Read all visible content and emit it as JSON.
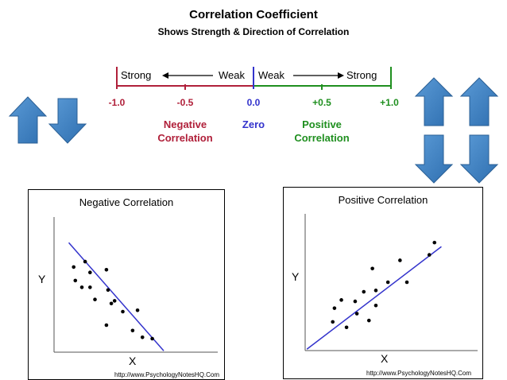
{
  "header": {
    "title": "Correlation Coefficient",
    "subtitle": "Shows Strength & Direction of Correlation"
  },
  "scale": {
    "left_strong": "Strong",
    "left_weak": "Weak",
    "right_weak": "Weak",
    "right_strong": "Strong",
    "ticks": [
      {
        "label": "-1.0",
        "value": -1.0
      },
      {
        "label": "-0.5",
        "value": -0.5
      },
      {
        "label": "0.0",
        "value": 0.0
      },
      {
        "label": "+0.5",
        "value": 0.5
      },
      {
        "label": "+1.0",
        "value": 1.0
      }
    ],
    "negative_line1": "Negative",
    "negative_line2": "Correlation",
    "zero": "Zero",
    "positive_line1": "Positive",
    "positive_line2": "Correlation"
  },
  "colors": {
    "negative": "#b0203a",
    "zero": "#3333cc",
    "positive": "#1f8f1f",
    "arrow_fill": "#3d7fc0",
    "arrow_stroke": "#2a5f95",
    "fit_line": "#3333cc"
  },
  "panels": {
    "negative": {
      "title": "Negative Correlation",
      "xlabel": "X",
      "ylabel": "Y",
      "credit": "http://www.PsychologyNotesHQ.Com"
    },
    "positive": {
      "title": "Positive Correlation",
      "xlabel": "X",
      "ylabel": "Y",
      "credit": "http://www.PsychologyNotesHQ.Com"
    }
  },
  "chart_data": [
    {
      "type": "scatter",
      "title": "Negative Correlation",
      "xlabel": "X",
      "ylabel": "Y",
      "xlim": [
        0,
        10
      ],
      "ylim": [
        0,
        10
      ],
      "points": [
        [
          1.2,
          6.3
        ],
        [
          1.3,
          5.3
        ],
        [
          1.7,
          4.8
        ],
        [
          1.9,
          6.7
        ],
        [
          2.2,
          5.9
        ],
        [
          2.2,
          4.8
        ],
        [
          2.5,
          3.9
        ],
        [
          3.2,
          6.1
        ],
        [
          3.3,
          4.6
        ],
        [
          3.5,
          3.6
        ],
        [
          3.2,
          2.0
        ],
        [
          3.7,
          3.8
        ],
        [
          4.2,
          3.0
        ],
        [
          4.8,
          1.6
        ],
        [
          5.1,
          3.1
        ],
        [
          5.4,
          1.1
        ],
        [
          6.0,
          1.0
        ]
      ],
      "fit_line": [
        [
          0.9,
          8.1
        ],
        [
          6.7,
          0.1
        ]
      ]
    },
    {
      "type": "scatter",
      "title": "Positive Correlation",
      "xlabel": "X",
      "ylabel": "Y",
      "xlim": [
        0,
        10
      ],
      "ylim": [
        0,
        10
      ],
      "points": [
        [
          1.6,
          2.1
        ],
        [
          1.7,
          3.1
        ],
        [
          2.1,
          3.7
        ],
        [
          2.4,
          1.7
        ],
        [
          2.9,
          3.6
        ],
        [
          3.0,
          2.7
        ],
        [
          3.4,
          4.3
        ],
        [
          3.7,
          2.2
        ],
        [
          3.9,
          6.0
        ],
        [
          4.1,
          3.3
        ],
        [
          4.1,
          4.4
        ],
        [
          4.8,
          5.0
        ],
        [
          5.5,
          6.6
        ],
        [
          5.9,
          5.0
        ],
        [
          7.2,
          7.0
        ],
        [
          7.5,
          7.9
        ]
      ],
      "fit_line": [
        [
          0.1,
          0.1
        ],
        [
          7.9,
          7.6
        ]
      ]
    }
  ]
}
